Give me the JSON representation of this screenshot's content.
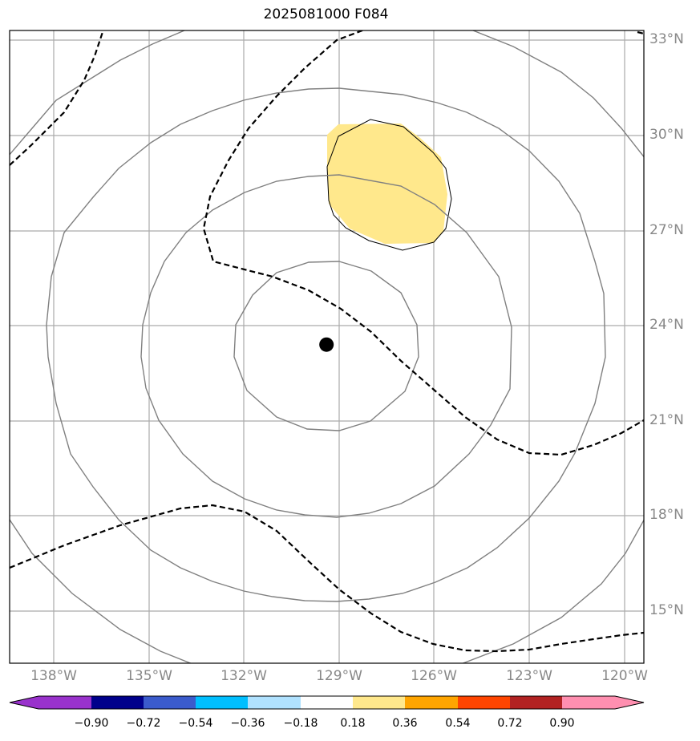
{
  "title": "2025081000 F084",
  "lat_axis": {
    "labels": [
      "33°N",
      "30°N",
      "27°N",
      "24°N",
      "21°N",
      "18°N",
      "15°N"
    ],
    "values": [
      33,
      30,
      27,
      24,
      21,
      18,
      15
    ]
  },
  "lon_axis": {
    "labels": [
      "138°W",
      "135°W",
      "132°W",
      "129°W",
      "126°W",
      "123°W",
      "120°W"
    ],
    "values": [
      -138,
      -135,
      -132,
      -129,
      -126,
      -123,
      -120
    ]
  },
  "storm_center": {
    "lon": -129.4,
    "lat": 23.4
  },
  "colorbar": {
    "ticks": [
      "−0.90",
      "−0.72",
      "−0.54",
      "−0.36",
      "−0.18",
      "0.18",
      "0.36",
      "0.54",
      "0.72",
      "0.90"
    ],
    "colors": [
      "#9932cc",
      "#00008b",
      "#3b5bcc",
      "#00bfff",
      "#b0e2ff",
      "#ffffff",
      "#ffe88c",
      "#ffa500",
      "#ff4500",
      "#b22222",
      "#ff8fb0"
    ]
  },
  "colors": {
    "grid": "#aaaaaa",
    "range_ring": "#808080",
    "shaded_region": "#ffe88c",
    "dashed_contour": "#000000"
  }
}
